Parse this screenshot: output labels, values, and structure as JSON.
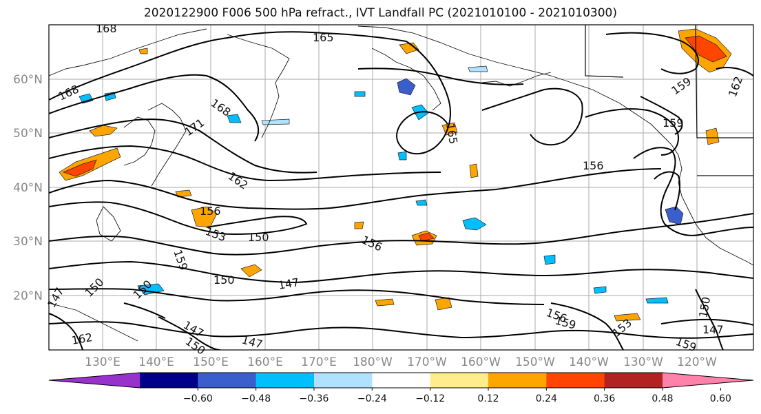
{
  "title": "2020122900 F006 500 hPa refract., IVT Landfall PC (2021010100 - 2021010300)",
  "lat_labels": [
    "60°N",
    "50°N",
    "40°N",
    "30°N",
    "20°N"
  ],
  "lon_labels": [
    "130°E",
    "140°E",
    "150°E",
    "160°E",
    "170°E",
    "180°W",
    "170°W",
    "160°W",
    "150°W",
    "140°W",
    "130°W",
    "120°W"
  ],
  "colorbar": {
    "colors": [
      "#9932cc",
      "#00008b",
      "#3a5fcd",
      "#00bfff",
      "#b0e2ff",
      "#ffffff",
      "#ffec8b",
      "#ffa500",
      "#ff4500",
      "#b22222",
      "#ff82ab"
    ],
    "ticks": [
      "−0.60",
      "−0.48",
      "−0.36",
      "−0.24",
      "−0.12",
      "0.12",
      "0.24",
      "0.36",
      "0.48",
      "0.60"
    ]
  },
  "contour_labels": [
    "168",
    "165",
    "168",
    "168",
    "171",
    "162",
    "156",
    "153",
    "150",
    "159",
    "150",
    "147",
    "156",
    "156",
    "159",
    "159",
    "162",
    "156",
    "147",
    "150",
    "153",
    "159",
    "147",
    "150",
    "147",
    "159",
    "162",
    "150",
    "147",
    "150",
    "165"
  ]
}
